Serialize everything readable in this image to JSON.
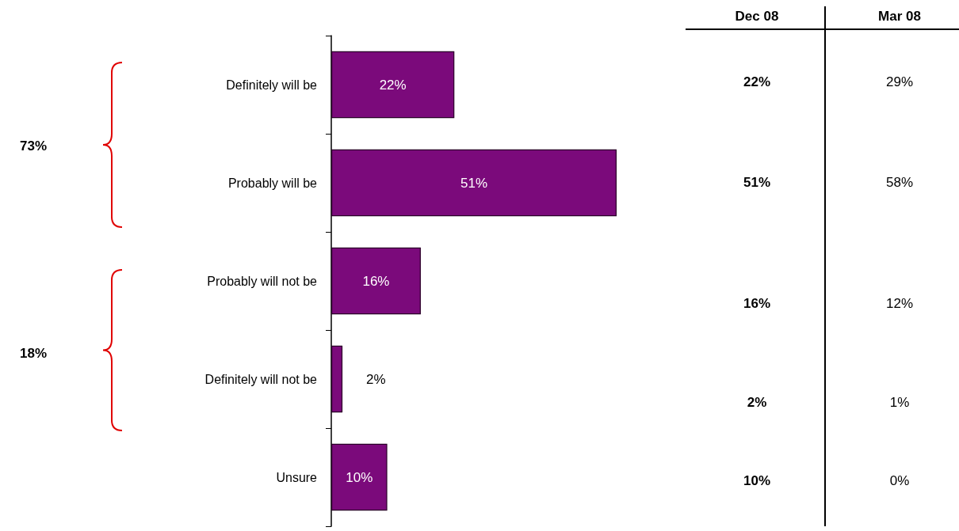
{
  "chart_data": [
    {
      "type": "bar",
      "orientation": "horizontal",
      "categories": [
        "Definitely will be",
        "Probably will be",
        "Probably will not be",
        "Definitely will not be",
        "Unsure"
      ],
      "values": [
        22,
        51,
        16,
        2,
        10
      ],
      "value_labels": [
        "22%",
        "51%",
        "16%",
        "2%",
        "10%"
      ],
      "color": "#7b0a7b",
      "annotations": [
        "73%",
        "18%"
      ]
    },
    {
      "type": "other",
      "title": "Dec 08",
      "values": [
        22,
        51,
        16,
        2,
        10
      ],
      "value_labels": [
        "22%",
        "51%",
        "16%",
        "2%",
        "10%"
      ]
    },
    {
      "type": "other",
      "title": "Mar 08",
      "values": [
        29,
        58,
        12,
        1,
        0
      ],
      "value_labels": [
        "29%",
        "58%",
        "12%",
        "1%",
        "0%"
      ]
    }
  ]
}
